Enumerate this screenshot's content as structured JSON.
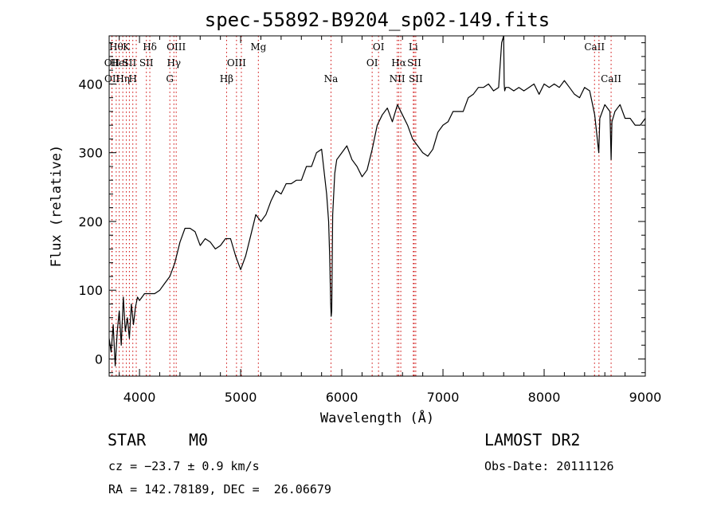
{
  "chart_data": {
    "type": "line",
    "title": "spec-55892-B9204_sp02-149.fits",
    "xlabel": "Wavelength (Å)",
    "ylabel": "Flux (relative)",
    "xlim": [
      3700,
      9000
    ],
    "ylim": [
      -25,
      470
    ],
    "xticks": [
      4000,
      5000,
      6000,
      7000,
      8000,
      9000
    ],
    "yticks": [
      0,
      100,
      200,
      300,
      400
    ],
    "grid": false,
    "line_color": "#000000",
    "marker_color": "#cc0000",
    "series": [
      {
        "x": [
          3700,
          3720,
          3740,
          3760,
          3780,
          3800,
          3820,
          3840,
          3860,
          3880,
          3900,
          3920,
          3940,
          3960,
          3980,
          4000,
          4050,
          4100,
          4150,
          4200,
          4250,
          4300,
          4350,
          4400,
          4450,
          4500,
          4550,
          4600,
          4650,
          4700,
          4750,
          4800,
          4850,
          4900,
          4950,
          5000,
          5050,
          5100,
          5150,
          5200,
          5250,
          5300,
          5350,
          5400,
          5450,
          5500,
          5550,
          5600,
          5650,
          5700,
          5750,
          5800,
          5850,
          5870,
          5880,
          5890,
          5895,
          5900,
          5910,
          5930,
          5950,
          6000,
          6050,
          6100,
          6150,
          6200,
          6250,
          6300,
          6350,
          6400,
          6450,
          6500,
          6550,
          6600,
          6650,
          6700,
          6750,
          6800,
          6850,
          6900,
          6950,
          7000,
          7050,
          7100,
          7150,
          7200,
          7250,
          7300,
          7350,
          7400,
          7450,
          7500,
          7550,
          7580,
          7600,
          7605,
          7610,
          7620,
          7650,
          7700,
          7750,
          7800,
          7850,
          7900,
          7950,
          8000,
          8050,
          8100,
          8150,
          8200,
          8250,
          8300,
          8350,
          8400,
          8450,
          8500,
          8540,
          8550,
          8600,
          8650,
          8662,
          8670,
          8700,
          8750,
          8800,
          8850,
          8900,
          8950,
          9000
        ],
        "y": [
          30,
          10,
          50,
          -10,
          40,
          70,
          20,
          90,
          40,
          60,
          30,
          80,
          50,
          75,
          90,
          85,
          95,
          95,
          95,
          100,
          110,
          120,
          140,
          170,
          190,
          190,
          185,
          165,
          175,
          170,
          160,
          165,
          175,
          175,
          150,
          130,
          150,
          180,
          210,
          200,
          210,
          230,
          245,
          240,
          255,
          255,
          260,
          260,
          280,
          280,
          300,
          305,
          240,
          200,
          150,
          80,
          62,
          70,
          210,
          270,
          290,
          300,
          310,
          290,
          280,
          265,
          275,
          305,
          340,
          355,
          365,
          345,
          370,
          355,
          340,
          320,
          310,
          300,
          295,
          305,
          330,
          340,
          345,
          360,
          360,
          360,
          380,
          385,
          395,
          395,
          400,
          390,
          395,
          460,
          470,
          400,
          390,
          395,
          395,
          390,
          395,
          390,
          395,
          400,
          385,
          400,
          395,
          400,
          395,
          405,
          395,
          385,
          380,
          395,
          390,
          355,
          300,
          350,
          370,
          360,
          290,
          345,
          360,
          370,
          350,
          350,
          340,
          340,
          350
        ]
      }
    ],
    "line_markers": [
      {
        "x": 3727,
        "label": "OII",
        "row": 2
      },
      {
        "x": 3729,
        "label": "OII",
        "row": 3
      },
      {
        "x": 3770,
        "label": "Hθ",
        "row": 1
      },
      {
        "x": 3800,
        "label": "HeI",
        "row": 2
      },
      {
        "x": 3835,
        "label": "Hη",
        "row": 3
      },
      {
        "x": 3870,
        "label": "K",
        "row": 1
      },
      {
        "x": 3900,
        "label": "SII",
        "row": 2
      },
      {
        "x": 3934,
        "label": "H",
        "row": 3
      },
      {
        "x": 3968,
        "label": "",
        "row": 0
      },
      {
        "x": 4068,
        "label": "SII",
        "row": 2
      },
      {
        "x": 4102,
        "label": "Hδ",
        "row": 1
      },
      {
        "x": 4300,
        "label": "G",
        "row": 3
      },
      {
        "x": 4340,
        "label": "Hγ",
        "row": 2
      },
      {
        "x": 4363,
        "label": "OIII",
        "row": 1
      },
      {
        "x": 4861,
        "label": "Hβ",
        "row": 3
      },
      {
        "x": 4959,
        "label": "OIII",
        "row": 2
      },
      {
        "x": 5007,
        "label": "",
        "row": 0
      },
      {
        "x": 5175,
        "label": "Mg",
        "row": 1
      },
      {
        "x": 5893,
        "label": "Na",
        "row": 3
      },
      {
        "x": 6300,
        "label": "OI",
        "row": 2
      },
      {
        "x": 6363,
        "label": "OI",
        "row": 1
      },
      {
        "x": 6548,
        "label": "NII",
        "row": 3
      },
      {
        "x": 6563,
        "label": "Hα",
        "row": 2
      },
      {
        "x": 6583,
        "label": "",
        "row": 0
      },
      {
        "x": 6707,
        "label": "Li",
        "row": 1
      },
      {
        "x": 6716,
        "label": "SII",
        "row": 2
      },
      {
        "x": 6731,
        "label": "SII",
        "row": 3
      },
      {
        "x": 8498,
        "label": "CaII",
        "row": 1
      },
      {
        "x": 8542,
        "label": "",
        "row": 0
      },
      {
        "x": 8662,
        "label": "CaII",
        "row": 3
      }
    ]
  },
  "info": {
    "class_label": "STAR",
    "subclass": "M0",
    "cz": "cz = −23.7 ± 0.9 km/s",
    "coords": "RA = 142.78189, DEC =  26.06679",
    "survey": "LAMOST DR2",
    "obs_date": "Obs-Date: 20111126"
  }
}
